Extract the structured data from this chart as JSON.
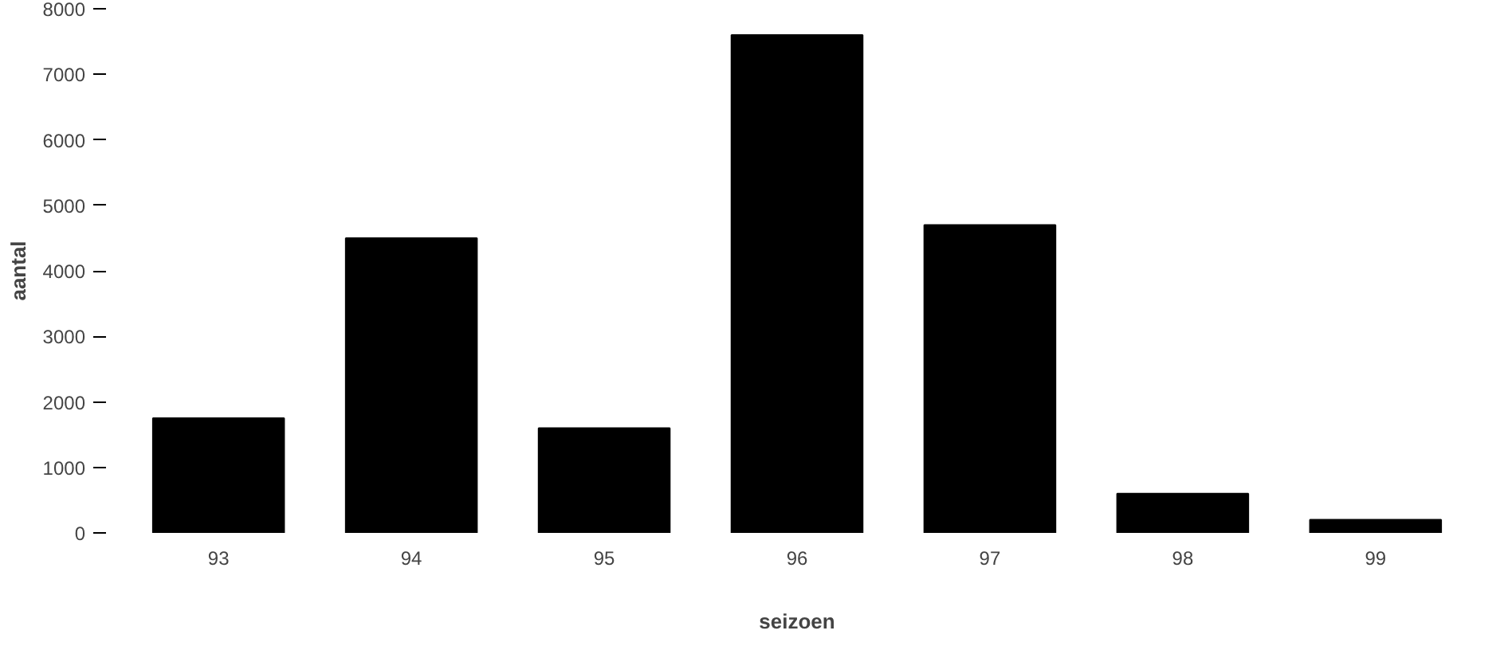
{
  "chart_data": {
    "type": "bar",
    "xlabel": "seizoen",
    "ylabel": "aantal",
    "categories": [
      "93",
      "94",
      "95",
      "96",
      "97",
      "98",
      "99"
    ],
    "values": [
      1750,
      4500,
      1600,
      7600,
      4700,
      600,
      200
    ],
    "color": "#000000",
    "ylim": [
      0,
      8000
    ],
    "yticks": [
      0,
      1000,
      2000,
      3000,
      4000,
      5000,
      6000,
      7000,
      8000
    ],
    "grid": false
  }
}
